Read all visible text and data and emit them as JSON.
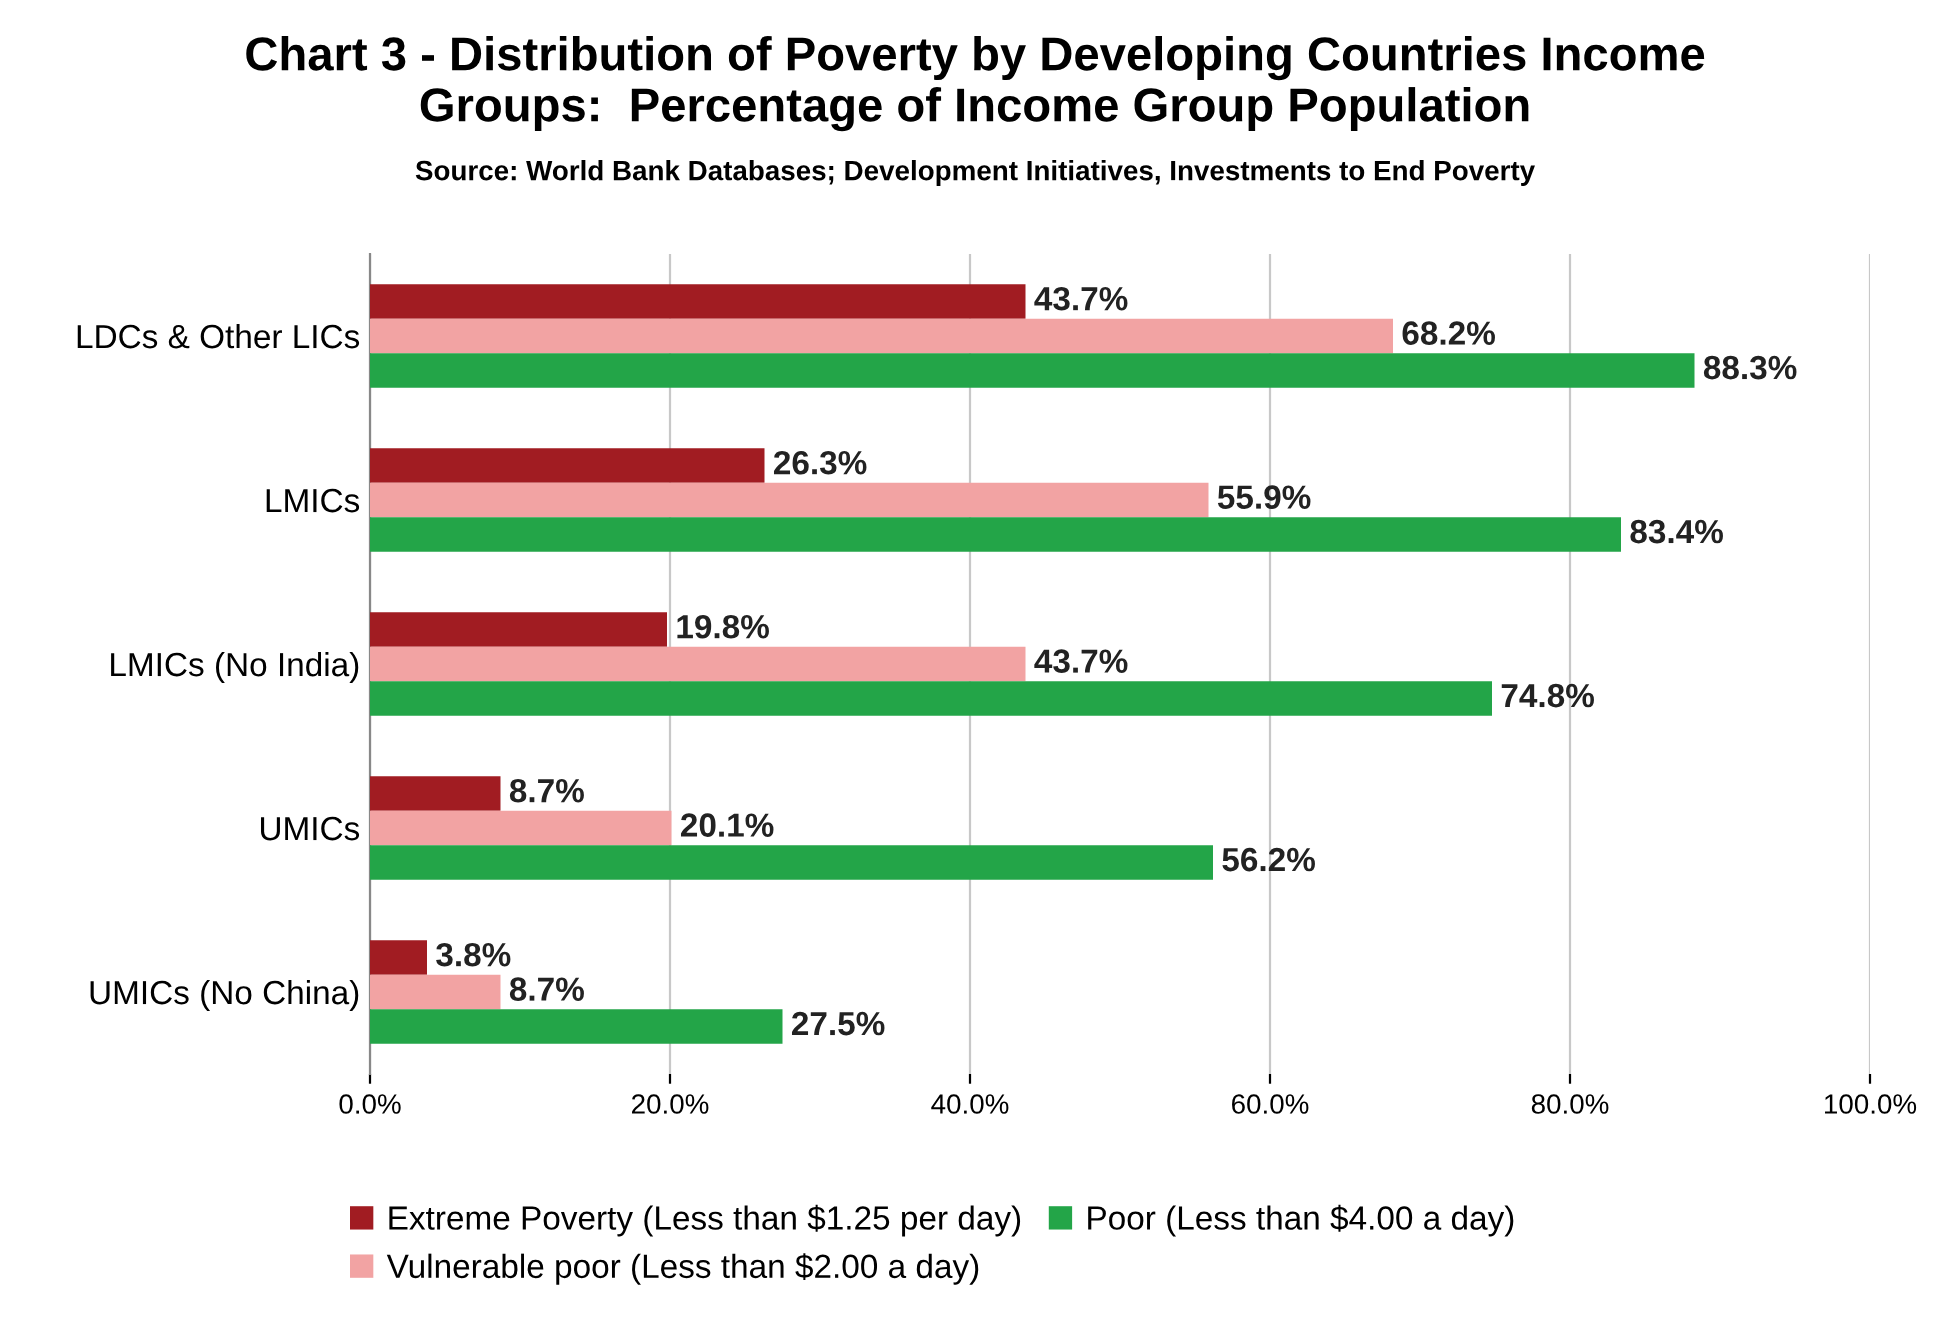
{
  "chart_data": {
    "type": "bar",
    "orientation": "horizontal",
    "title": "Chart 3 - Distribution of Poverty by Developing Countries Income\nGroups:  Percentage of Income Group Population",
    "subtitle": "Source: World Bank Databases; Development Initiatives, Investments to End Poverty",
    "categories": [
      "LDCs & Other LICs",
      "LMICs",
      "LMICs (No India)",
      "UMICs",
      "UMICs (No China)"
    ],
    "series": [
      {
        "name": "Extreme Poverty (Less than $1.25 per day)",
        "color": "#a11c22",
        "values": [
          43.7,
          26.3,
          19.8,
          8.7,
          3.8
        ],
        "value_labels": [
          "43.7%",
          "26.3%",
          "19.8%",
          "8.7%",
          "3.8%"
        ]
      },
      {
        "name": "Vulnerable poor (Less than $2.00 a day)",
        "color": "#f2a3a3",
        "values": [
          68.2,
          55.9,
          43.7,
          20.1,
          8.7
        ],
        "value_labels": [
          "68.2%",
          "55.9%",
          "43.7%",
          "20.1%",
          "8.7%"
        ]
      },
      {
        "name": "Poor (Less than $4.00 a day)",
        "color": "#23a548",
        "values": [
          88.3,
          83.4,
          74.8,
          56.2,
          27.5
        ],
        "value_labels": [
          "88.3%",
          "83.4%",
          "74.8%",
          "56.2%",
          "27.5%"
        ]
      }
    ],
    "xlim": [
      0,
      100
    ],
    "xticks": [
      {
        "value": 0,
        "label": "0.0%"
      },
      {
        "value": 20,
        "label": "20.0%"
      },
      {
        "value": 40,
        "label": "40.0%"
      },
      {
        "value": 60,
        "label": "60.0%"
      },
      {
        "value": 80,
        "label": "80.0%"
      },
      {
        "value": 100,
        "label": "100.0%"
      }
    ],
    "grid": "x",
    "legend": "bottom"
  }
}
